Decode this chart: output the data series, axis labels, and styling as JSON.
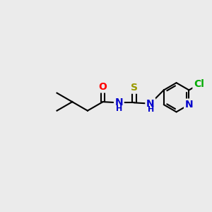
{
  "background_color": "#ebebeb",
  "bond_color": "#000000",
  "bond_width": 1.5,
  "atom_colors": {
    "O": "#ff0000",
    "N": "#0000cc",
    "S": "#999900",
    "Cl": "#00aa00",
    "C": "#000000"
  },
  "font_size_atoms": 10,
  "font_size_H": 8
}
